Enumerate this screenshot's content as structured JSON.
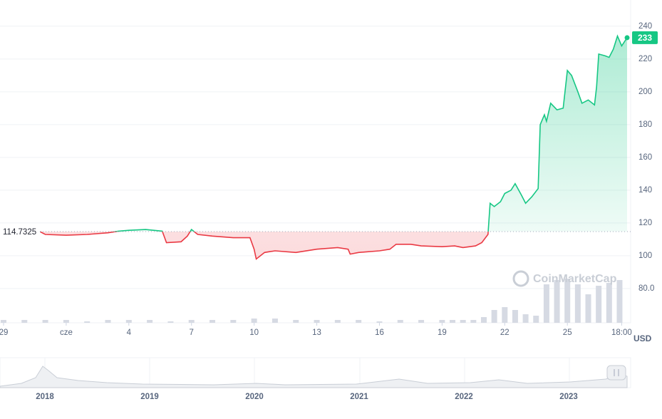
{
  "chart_data": {
    "type": "line",
    "x": [
      1.7,
      2,
      3,
      4,
      5,
      5.5,
      6,
      6.8,
      7.6,
      7.8,
      8.5,
      8.8,
      9,
      9.3,
      10,
      11,
      11.8,
      12,
      12.1,
      12.5,
      13,
      14,
      15,
      16,
      16.5,
      16.6,
      17,
      18,
      18.5,
      18.8,
      19.5,
      20,
      21,
      21.6,
      22,
      22.6,
      22.9,
      23.2,
      23.3,
      23.5,
      23.8,
      24,
      24.3,
      24.5,
      24.8,
      25,
      25.3,
      25.6,
      25.7,
      25.9,
      26,
      26.2,
      26.5,
      26.8,
      27,
      27.2,
      27.5,
      27.7,
      28,
      28.3,
      28.4,
      28.5,
      28.8,
      29,
      29.2,
      29.4,
      29.6,
      29.86
    ],
    "values": [
      115,
      113,
      112.5,
      113,
      114,
      115,
      115.5,
      116,
      115,
      108,
      108.5,
      112,
      116,
      113,
      112,
      111,
      111,
      104,
      98,
      102,
      103,
      102,
      104,
      105,
      104,
      101,
      102,
      103,
      104,
      107,
      107,
      106,
      105.5,
      106,
      105,
      106,
      108,
      113,
      132,
      130,
      133,
      138,
      140,
      144,
      137,
      132,
      136,
      141,
      180,
      186,
      182,
      193,
      189,
      190,
      213,
      210,
      200,
      193,
      195,
      192,
      203,
      223,
      222,
      221,
      226,
      234,
      228,
      233
    ],
    "baseline": {
      "value": 114.7325,
      "label": "114.7325"
    },
    "current": {
      "value": 233,
      "label": "233"
    },
    "up_color": "#16c784",
    "down_color": "#ea3943",
    "xlim": [
      -0.17,
      30.03
    ],
    "xticks": [
      {
        "value": 0,
        "label": "29"
      },
      {
        "value": 3,
        "label": "cze"
      },
      {
        "value": 6,
        "label": "4"
      },
      {
        "value": 9,
        "label": "7"
      },
      {
        "value": 12,
        "label": "10"
      },
      {
        "value": 15,
        "label": "13"
      },
      {
        "value": 18,
        "label": "16"
      },
      {
        "value": 21,
        "label": "19"
      },
      {
        "value": 24,
        "label": "22"
      },
      {
        "value": 27,
        "label": "25"
      },
      {
        "value": 29.6,
        "label": "18:00"
      }
    ],
    "ylim": [
      59.1,
      256
    ],
    "yticks": [
      {
        "value": 80,
        "label": "80.0"
      },
      100,
      120,
      140,
      160,
      180,
      200,
      220,
      240
    ],
    "grid": true,
    "y_unit": "USD",
    "watermark": "CoinMarketCap",
    "volume": {
      "axis": "y2",
      "color": "#d6dae3",
      "x": [
        0,
        1,
        2,
        3,
        4,
        5,
        6,
        7,
        8,
        9,
        10,
        11,
        12,
        13,
        14,
        15,
        16,
        17,
        18,
        19,
        20,
        21,
        21.5,
        22,
        22.5,
        23,
        23.5,
        24,
        24.5,
        25,
        25.5,
        26,
        26.5,
        27,
        27.5,
        28,
        28.5,
        29,
        29.5
      ],
      "values": [
        2,
        2,
        2,
        2,
        1,
        2,
        2,
        2,
        1,
        2,
        2,
        2,
        3,
        3,
        2,
        2,
        2,
        2,
        1,
        2,
        2,
        2,
        2,
        2,
        2,
        4,
        9,
        11,
        9,
        6,
        5,
        27,
        30,
        31,
        27,
        20,
        26,
        28,
        30
      ]
    },
    "y2lim": [
      0,
      100
    ]
  },
  "navigator": {
    "years": [
      "2018",
      "2019",
      "2020",
      "2021",
      "2022",
      "2023"
    ]
  }
}
